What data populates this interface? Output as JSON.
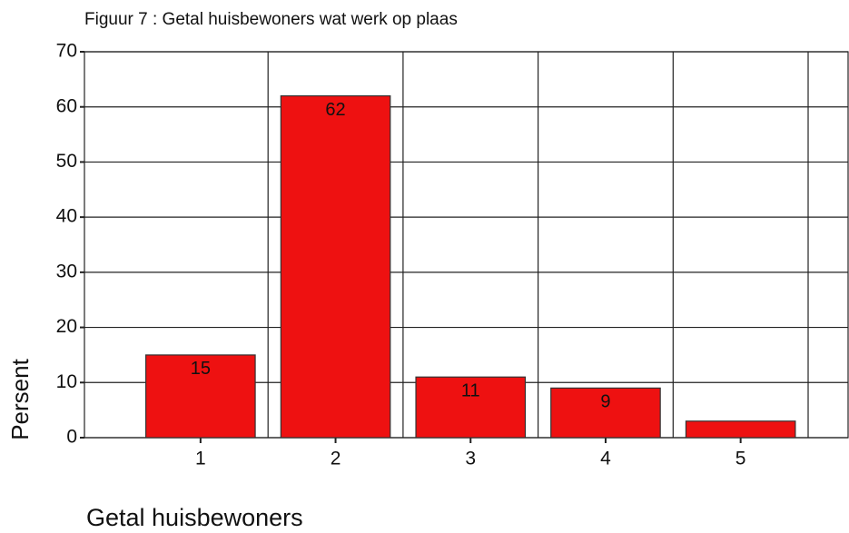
{
  "chart_data": {
    "type": "bar",
    "title": "Figuur 7 : Getal huisbewoners wat werk op plaas",
    "x_label": "Getal huisbewoners",
    "y_label": "Persent",
    "categories": [
      "1",
      "2",
      "3",
      "4",
      "5"
    ],
    "values": [
      15,
      62,
      11,
      9,
      3
    ],
    "value_labels": [
      "15",
      "62",
      "11",
      "9",
      null
    ],
    "color": "#ee1111",
    "ylim": [
      0,
      70
    ],
    "yticks": [
      0,
      10,
      20,
      30,
      40,
      50,
      60,
      70
    ],
    "grid": true
  }
}
